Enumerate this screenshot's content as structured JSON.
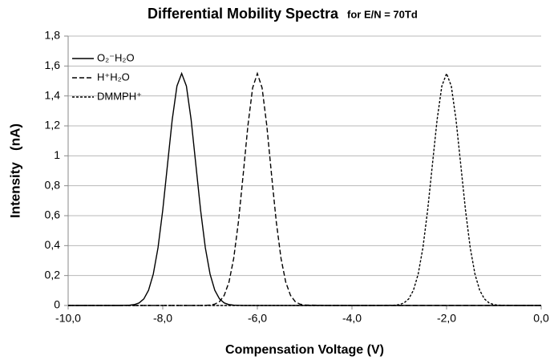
{
  "chart_data": {
    "type": "line",
    "title": "Differential Mobility Spectra",
    "subtitle": "for E/N = 70Td",
    "x_label": "Compensation Voltage (V)",
    "y_label": "Intensity   (nA)",
    "x": [
      -10,
      -9.5,
      -9,
      -8.9,
      -8.8,
      -8.7,
      -8.6,
      -8.5,
      -8.4,
      -8.3,
      -8.2,
      -8.1,
      -8,
      -7.9,
      -7.8,
      -7.7,
      -7.6,
      -7.5,
      -7.4,
      -7.3,
      -7.2,
      -7.1,
      -7,
      -6.9,
      -6.8,
      -6.7,
      -6.6,
      -6.5,
      -6.4,
      -6.3,
      -6.2,
      -6.1,
      -6,
      -5.9,
      -5.8,
      -5.7,
      -5.6,
      -5.5,
      -5.4,
      -5.3,
      -5.2,
      -5.1,
      -5,
      -4.5,
      -4,
      -3.5,
      -3.2,
      -3.1,
      -3,
      -2.9,
      -2.8,
      -2.7,
      -2.6,
      -2.5,
      -2.4,
      -2.3,
      -2.2,
      -2.1,
      -2,
      -1.9,
      -1.8,
      -1.7,
      -1.6,
      -1.5,
      -1.4,
      -1.3,
      -1.2,
      -1.1,
      -1,
      -0.9,
      -0.8,
      -0.5,
      0
    ],
    "series": [
      {
        "name": "O₂⁻H₂O",
        "color": "#000000",
        "dash": "solid",
        "values": [
          0,
          0,
          0,
          0,
          0.001,
          0.002,
          0.006,
          0.017,
          0.044,
          0.102,
          0.21,
          0.386,
          0.637,
          0.94,
          1.241,
          1.466,
          1.55,
          1.466,
          1.241,
          0.94,
          0.637,
          0.386,
          0.21,
          0.102,
          0.044,
          0.017,
          0.006,
          0.002,
          0.001,
          0,
          0,
          0,
          0,
          0,
          0,
          0,
          0,
          0,
          0,
          0,
          0,
          0,
          0,
          0,
          0,
          0,
          0,
          0,
          0,
          0,
          0,
          0,
          0,
          0,
          0,
          0,
          0,
          0,
          0,
          0,
          0,
          0,
          0,
          0,
          0,
          0,
          0,
          0,
          0,
          0,
          0,
          0,
          0
        ]
      },
      {
        "name": "H⁺H₂O",
        "color": "#000000",
        "dash": "dashed",
        "values": [
          0,
          0,
          0,
          0,
          0,
          0,
          0,
          0,
          0,
          0,
          0,
          0,
          0,
          0,
          0,
          0,
          0,
          0,
          0,
          0,
          0,
          0,
          0.003,
          0.009,
          0.026,
          0.068,
          0.156,
          0.315,
          0.559,
          0.873,
          1.201,
          1.454,
          1.55,
          1.454,
          1.201,
          0.873,
          0.559,
          0.315,
          0.156,
          0.068,
          0.026,
          0.009,
          0.003,
          0,
          0,
          0,
          0,
          0,
          0,
          0,
          0,
          0,
          0,
          0,
          0,
          0,
          0,
          0,
          0,
          0,
          0,
          0,
          0,
          0,
          0,
          0,
          0,
          0,
          0,
          0,
          0,
          0,
          0
        ]
      },
      {
        "name": "DMMPH⁺",
        "color": "#000000",
        "dash": "dotted",
        "values": [
          0,
          0,
          0,
          0,
          0,
          0,
          0,
          0,
          0,
          0,
          0,
          0,
          0,
          0,
          0,
          0,
          0,
          0,
          0,
          0,
          0,
          0,
          0,
          0,
          0,
          0,
          0,
          0,
          0,
          0,
          0,
          0,
          0,
          0,
          0,
          0,
          0,
          0,
          0,
          0,
          0,
          0,
          0,
          0,
          0,
          0,
          0.001,
          0.002,
          0.006,
          0.017,
          0.044,
          0.102,
          0.21,
          0.386,
          0.637,
          0.94,
          1.241,
          1.466,
          1.55,
          1.466,
          1.241,
          0.94,
          0.637,
          0.386,
          0.21,
          0.102,
          0.044,
          0.017,
          0.006,
          0.002,
          0.001,
          0,
          0
        ]
      }
    ],
    "xlim": [
      -10,
      0
    ],
    "xticks": [
      {
        "value": -10,
        "label": "-10,0"
      },
      {
        "value": -8,
        "label": "-8,0"
      },
      {
        "value": -6,
        "label": "-6,0"
      },
      {
        "value": -4,
        "label": "-4,0"
      },
      {
        "value": -2,
        "label": "-2,0"
      },
      {
        "value": 0,
        "label": "0,0"
      }
    ],
    "ylim": [
      0,
      1.8
    ],
    "yticks": [
      0,
      {
        "value": 0.2,
        "label": "0,2"
      },
      {
        "value": 0.4,
        "label": "0,4"
      },
      {
        "value": 0.6,
        "label": "0,6"
      },
      {
        "value": 0.8,
        "label": "0,8"
      },
      1,
      {
        "value": 1.2,
        "label": "1,2"
      },
      {
        "value": 1.4,
        "label": "1,4"
      },
      {
        "value": 1.6,
        "label": "1,6"
      },
      {
        "value": 1.8,
        "label": "1,8"
      }
    ],
    "grid": true,
    "legend": "upper left"
  }
}
